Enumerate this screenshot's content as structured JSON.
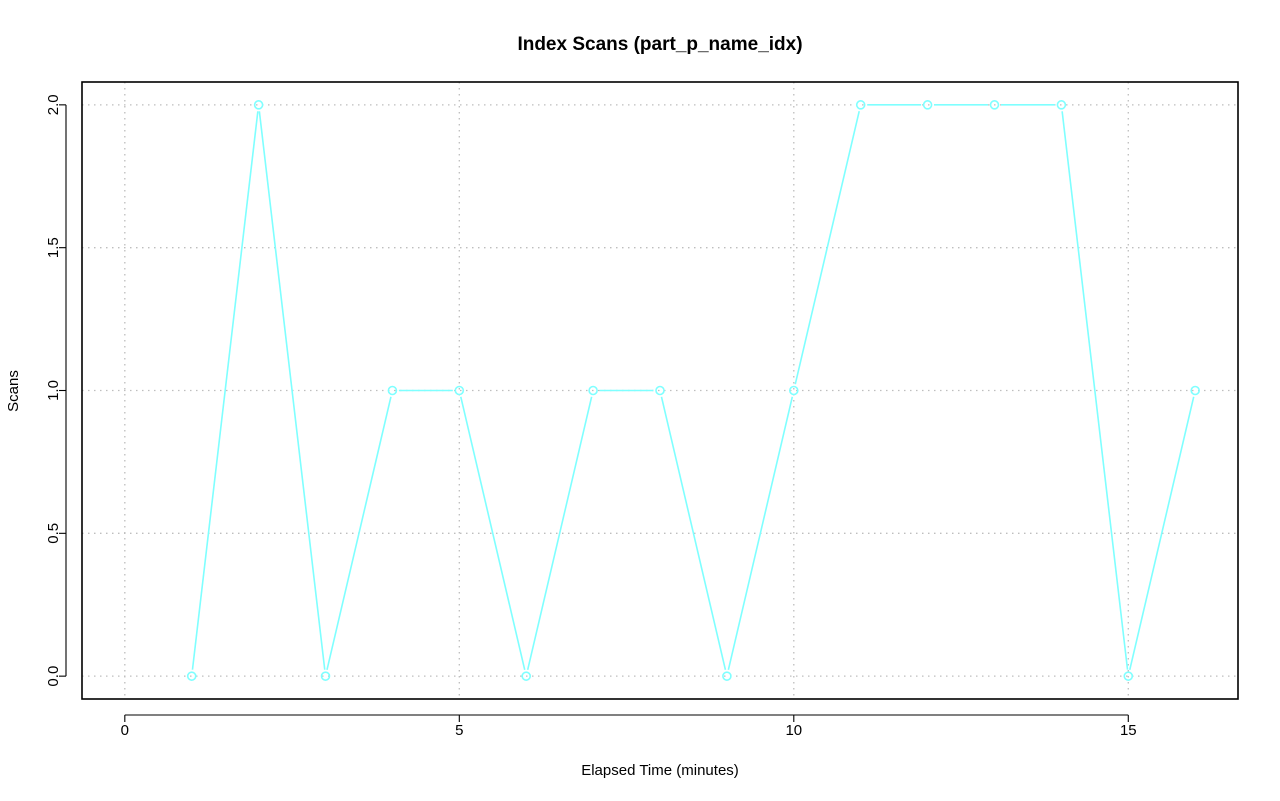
{
  "chart_data": {
    "type": "line",
    "title": "Index Scans (part_p_name_idx)",
    "xlabel": "Elapsed Time (minutes)",
    "ylabel": "Scans",
    "xlim": [
      -0.64,
      16.64
    ],
    "ylim": [
      -0.08,
      2.08
    ],
    "x_ticks": [
      0,
      5,
      10,
      15
    ],
    "y_ticks": [
      0.0,
      0.5,
      1.0,
      1.5,
      2.0
    ],
    "x_tick_labels": [
      "0",
      "5",
      "10",
      "15"
    ],
    "y_tick_labels": [
      "0.0",
      "0.5",
      "1.0",
      "1.5",
      "2.0"
    ],
    "grid": true,
    "series": [
      {
        "color": "#7fffff",
        "marker": "open-circle",
        "x": [
          1,
          2,
          3,
          4,
          5,
          6,
          7,
          8,
          9,
          10,
          11,
          12,
          13,
          14,
          15,
          16
        ],
        "values": [
          0,
          2,
          0,
          1,
          1,
          0,
          1,
          1,
          0,
          1,
          2,
          2,
          2,
          2,
          0,
          1
        ]
      }
    ]
  }
}
